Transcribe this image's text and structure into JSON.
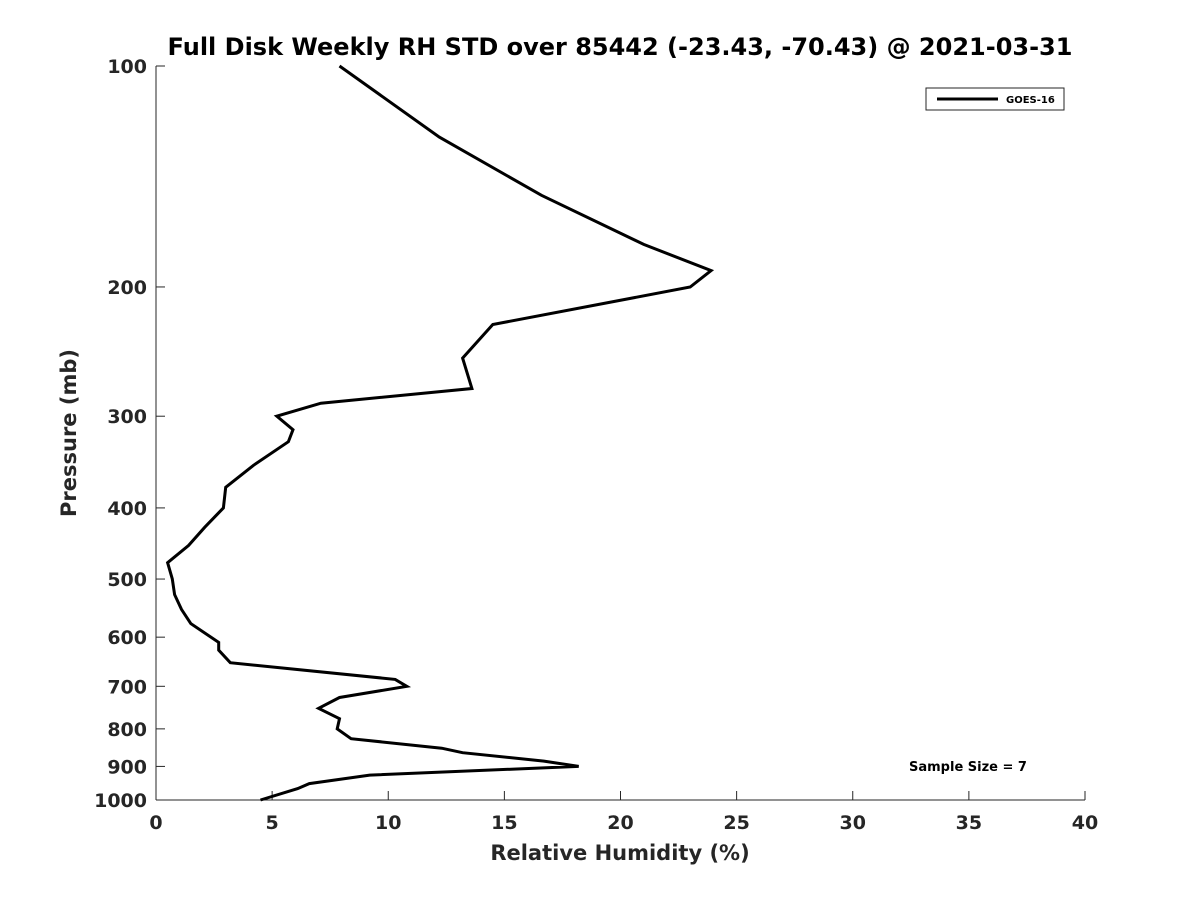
{
  "chart_data": {
    "type": "line",
    "title": "Full Disk Weekly RH STD over 85442 (-23.43, -70.43) @ 2021-03-31",
    "xlabel": "Relative Humidity (%)",
    "ylabel": "Pressure (mb)",
    "xlim": [
      0,
      40
    ],
    "ylim": [
      100,
      1000
    ],
    "yscale": "log",
    "yreversed": true,
    "xticks": [
      0,
      5,
      10,
      15,
      20,
      25,
      30,
      35,
      40
    ],
    "yticks": [
      100,
      200,
      300,
      400,
      500,
      600,
      700,
      800,
      900,
      1000
    ],
    "legend": {
      "position": "top-right",
      "entries": [
        "GOES-16"
      ]
    },
    "annotations": {
      "sample_size": "Sample Size = 7"
    },
    "series": [
      {
        "name": "GOES-16",
        "points": [
          [
            7.9,
            100
          ],
          [
            12.2,
            125
          ],
          [
            16.6,
            150
          ],
          [
            21.0,
            175
          ],
          [
            23.9,
            190
          ],
          [
            23.0,
            200
          ],
          [
            14.5,
            225
          ],
          [
            13.2,
            250
          ],
          [
            13.6,
            275
          ],
          [
            7.1,
            288
          ],
          [
            5.2,
            300
          ],
          [
            5.9,
            313
          ],
          [
            5.7,
            325
          ],
          [
            4.2,
            350
          ],
          [
            3.0,
            375
          ],
          [
            2.9,
            400
          ],
          [
            2.1,
            425
          ],
          [
            1.4,
            450
          ],
          [
            0.5,
            475
          ],
          [
            0.7,
            500
          ],
          [
            0.8,
            525
          ],
          [
            1.1,
            550
          ],
          [
            1.5,
            575
          ],
          [
            2.7,
            610
          ],
          [
            2.7,
            625
          ],
          [
            3.2,
            650
          ],
          [
            10.3,
            685
          ],
          [
            10.8,
            700
          ],
          [
            7.9,
            725
          ],
          [
            7.0,
            750
          ],
          [
            7.9,
            775
          ],
          [
            7.8,
            800
          ],
          [
            8.4,
            825
          ],
          [
            12.3,
            850
          ],
          [
            13.2,
            862
          ],
          [
            16.7,
            885
          ],
          [
            18.2,
            900
          ],
          [
            9.2,
            925
          ],
          [
            6.6,
            950
          ],
          [
            6.1,
            965
          ],
          [
            4.5,
            1000
          ]
        ]
      }
    ]
  }
}
